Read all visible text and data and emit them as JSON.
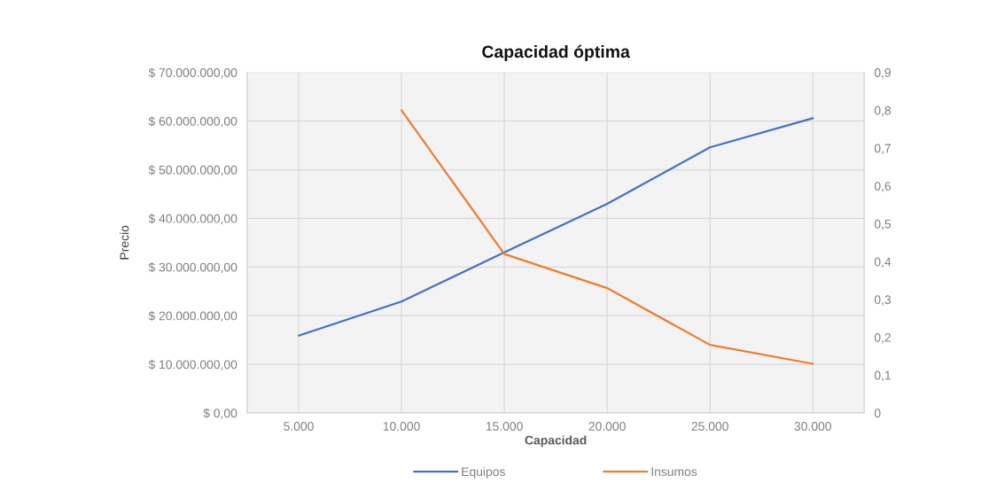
{
  "chart_data": {
    "type": "line",
    "title": "Capacidad óptima",
    "xlabel": "Capacidad",
    "ylabel": "Precio",
    "categories": [
      "5.000",
      "10.000",
      "15.000",
      "20.000",
      "25.000",
      "30.000"
    ],
    "series": [
      {
        "name": "Equipos",
        "color": "#4472c4",
        "values": [
          15900000,
          22900000,
          33000000,
          43000000,
          54600000,
          60600000
        ]
      },
      {
        "name": "Insumos",
        "color": "#ed7d31",
        "axis": "y2",
        "values": [
          null,
          0.8,
          0.42,
          0.33,
          0.18,
          0.13
        ]
      }
    ],
    "ylim": [
      0,
      70000000
    ],
    "yticks": [
      {
        "value": 0,
        "label": "$ 0,00"
      },
      {
        "value": 10000000,
        "label": "$ 10.000.000,00"
      },
      {
        "value": 20000000,
        "label": "$ 20.000.000,00"
      },
      {
        "value": 30000000,
        "label": "$ 30.000.000,00"
      },
      {
        "value": 40000000,
        "label": "$ 40.000.000,00"
      },
      {
        "value": 50000000,
        "label": "$ 50.000.000,00"
      },
      {
        "value": 60000000,
        "label": "$ 60.000.000,00"
      },
      {
        "value": 70000000,
        "label": "$ 70.000.000,00"
      }
    ],
    "y2lim": [
      0,
      0.9
    ],
    "y2ticks": [
      0,
      {
        "value": 0.1,
        "label": "0,1"
      },
      {
        "value": 0.2,
        "label": "0,2"
      },
      {
        "value": 0.3,
        "label": "0,3"
      },
      {
        "value": 0.4,
        "label": "0,4"
      },
      {
        "value": 0.5,
        "label": "0,5"
      },
      {
        "value": 0.6,
        "label": "0,6"
      },
      {
        "value": 0.7,
        "label": "0,7"
      },
      {
        "value": 0.8,
        "label": "0,8"
      },
      {
        "value": 0.9,
        "label": "0,9"
      }
    ],
    "grid": true,
    "legend": "bottom"
  }
}
